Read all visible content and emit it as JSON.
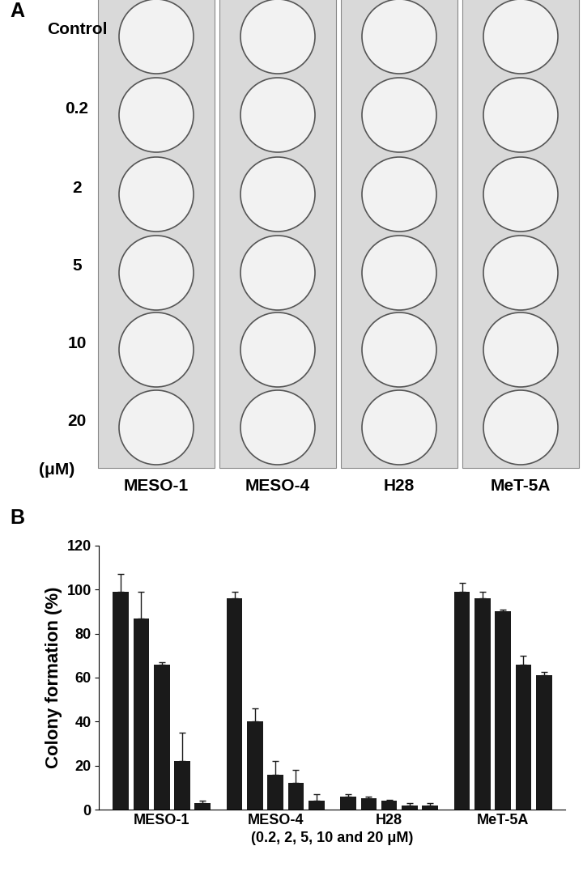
{
  "panel_a": {
    "panel_label": "A",
    "row_labels": [
      "Control",
      "0.2",
      "2",
      "5",
      "10",
      "20"
    ],
    "unit": "(μM)",
    "column_labels": [
      "MESO-1",
      "MESO-4",
      "H28",
      "MeT-5A"
    ]
  },
  "chart_data": {
    "type": "bar",
    "panel_label": "B",
    "ylabel": "Colony formation (%)",
    "xlabel": "(0.2, 2, 5, 10 and 20 μM)",
    "categories": [
      "MESO-1",
      "MESO-4",
      "H28",
      "MeT-5A"
    ],
    "series": [
      {
        "color": "#1a1a1a",
        "values": [
          99,
          96,
          6,
          99
        ],
        "errors": [
          8,
          3,
          1,
          4
        ]
      },
      {
        "color": "#1a1a1a",
        "values": [
          87,
          40,
          5,
          96
        ],
        "errors": [
          12,
          6,
          1,
          3
        ]
      },
      {
        "color": "#1a1a1a",
        "values": [
          66,
          16,
          4,
          90
        ],
        "errors": [
          1,
          6,
          0.5,
          1
        ]
      },
      {
        "color": "#1a1a1a",
        "values": [
          22,
          12,
          2,
          66
        ],
        "errors": [
          13,
          6,
          1,
          4
        ]
      },
      {
        "color": "#1a1a1a",
        "values": [
          3,
          4,
          2,
          61
        ],
        "errors": [
          1,
          3,
          1,
          1.5
        ]
      }
    ],
    "ylim": [
      0,
      120
    ],
    "yticks": [
      0,
      20,
      40,
      60,
      80,
      100,
      120
    ],
    "grid": false
  }
}
